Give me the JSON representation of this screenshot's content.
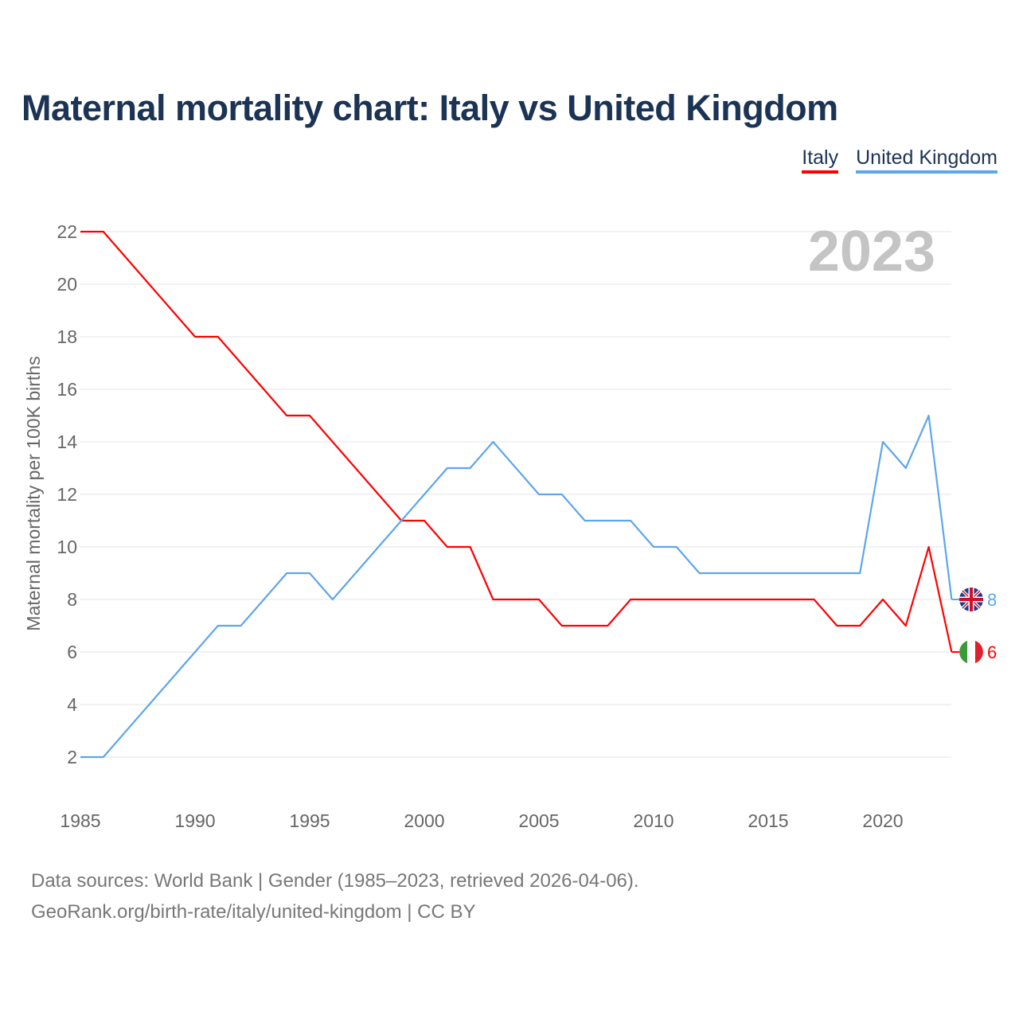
{
  "chart_data": {
    "type": "line",
    "title": "Maternal mortality chart: Italy vs United Kingdom",
    "xlabel": "",
    "ylabel": "Maternal mortality per 100K births",
    "xlim": [
      1985,
      2023
    ],
    "ylim": [
      2,
      22
    ],
    "x_ticks": [
      "1985",
      "1990",
      "1995",
      "2000",
      "2005",
      "2010",
      "2015",
      "2020"
    ],
    "y_ticks": [
      "2",
      "4",
      "6",
      "8",
      "10",
      "12",
      "14",
      "16",
      "18",
      "20",
      "22"
    ],
    "grid": true,
    "legend_position": "top-right",
    "year_label": "2023",
    "x": [
      1985,
      1986,
      1987,
      1988,
      1989,
      1990,
      1991,
      1992,
      1993,
      1994,
      1995,
      1996,
      1997,
      1998,
      1999,
      2000,
      2001,
      2002,
      2003,
      2004,
      2005,
      2006,
      2007,
      2008,
      2009,
      2010,
      2011,
      2012,
      2013,
      2014,
      2015,
      2016,
      2017,
      2018,
      2019,
      2020,
      2021,
      2022,
      2023
    ],
    "series": [
      {
        "name": "Italy",
        "color": "#ff0000",
        "end_label": "6",
        "values": [
          22,
          22,
          21,
          20,
          19,
          18,
          18,
          17,
          16,
          15,
          15,
          14,
          13,
          12,
          11,
          11,
          10,
          10,
          8,
          8,
          8,
          7,
          7,
          7,
          8,
          8,
          8,
          8,
          8,
          8,
          8,
          8,
          8,
          7,
          7,
          8,
          7,
          10,
          6
        ]
      },
      {
        "name": "United Kingdom",
        "color": "#5ea6ea",
        "end_label": "8",
        "values": [
          2,
          2,
          3,
          4,
          5,
          6,
          7,
          7,
          8,
          9,
          9,
          8,
          9,
          10,
          11,
          12,
          13,
          13,
          14,
          13,
          12,
          12,
          11,
          11,
          11,
          10,
          10,
          9,
          9,
          9,
          9,
          9,
          9,
          9,
          9,
          14,
          13,
          15,
          8
        ]
      }
    ]
  },
  "footer": {
    "line1": "Data sources: World Bank | Gender (1985–2023, retrieved 2026-04-06).",
    "line2": "GeoRank.org/birth-rate/italy/united-kingdom | CC BY"
  }
}
